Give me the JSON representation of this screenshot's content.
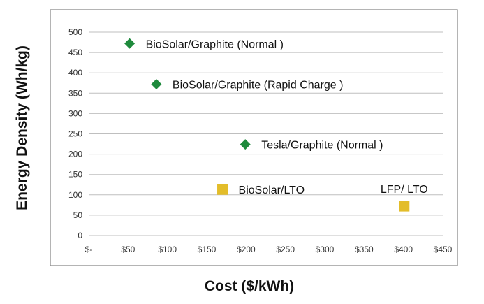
{
  "chart_data": {
    "type": "scatter",
    "title": "",
    "xlabel": "Cost ($/kWh)",
    "ylabel": "Energy Density (Wh/kg)",
    "xlim": [
      0,
      450
    ],
    "ylim": [
      0,
      500
    ],
    "x_ticks": [
      {
        "value": 0,
        "label": "$-"
      },
      {
        "value": 50,
        "label": "$50"
      },
      {
        "value": 100,
        "label": "$100"
      },
      {
        "value": 150,
        "label": "$150"
      },
      {
        "value": 200,
        "label": "$200"
      },
      {
        "value": 250,
        "label": "$250"
      },
      {
        "value": 300,
        "label": "$300"
      },
      {
        "value": 350,
        "label": "$350"
      },
      {
        "value": 400,
        "label": "$400"
      },
      {
        "value": 450,
        "label": "$450"
      }
    ],
    "y_ticks": [
      {
        "value": 0,
        "label": "0"
      },
      {
        "value": 50,
        "label": "50"
      },
      {
        "value": 100,
        "label": "100"
      },
      {
        "value": 150,
        "label": "150"
      },
      {
        "value": 200,
        "label": "200"
      },
      {
        "value": 250,
        "label": "250"
      },
      {
        "value": 300,
        "label": "300"
      },
      {
        "value": 350,
        "label": "350"
      },
      {
        "value": 400,
        "label": "400"
      },
      {
        "value": 450,
        "label": "450"
      },
      {
        "value": 500,
        "label": "500"
      }
    ],
    "grid": {
      "horizontal": true,
      "vertical": false
    },
    "legend": "none",
    "colors": {
      "diamond": "#1e8a3c",
      "square": "#e3bd2a",
      "grid": "#bfbfbf",
      "frame": "#8c8c8c"
    },
    "points": [
      {
        "label": "BioSolar/Graphite (Normal )",
        "x": 52,
        "y": 472,
        "marker": "diamond",
        "color": "#1e8a3c"
      },
      {
        "label": "BioSolar/Graphite (Rapid Charge )",
        "x": 86,
        "y": 372,
        "marker": "diamond",
        "color": "#1e8a3c"
      },
      {
        "label": "Tesla/Graphite (Normal )",
        "x": 199,
        "y": 224,
        "marker": "diamond",
        "color": "#1e8a3c"
      },
      {
        "label": "BioSolar/LTO",
        "x": 170,
        "y": 113,
        "marker": "square",
        "color": "#e3bd2a"
      },
      {
        "label": "LFP/ LTO",
        "x": 401,
        "y": 72,
        "marker": "square",
        "color": "#e3bd2a"
      }
    ]
  }
}
